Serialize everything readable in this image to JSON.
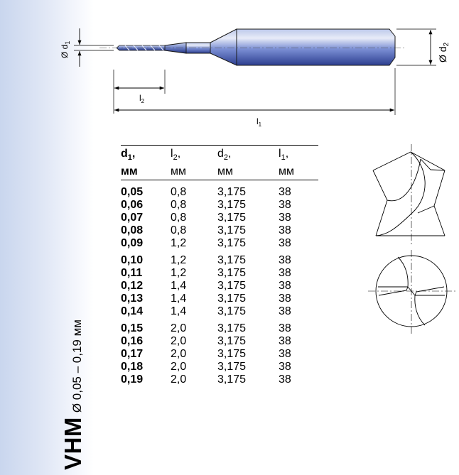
{
  "side_title": {
    "main": "VHM",
    "range": "Ø 0,05 – 0,19 мм"
  },
  "drawing_labels": {
    "d1": "Ø d",
    "d1_sub": "1",
    "d2": "Ø d",
    "d2_sub": "2",
    "l2": "l",
    "l2_sub": "2",
    "l1": "l",
    "l1_sub": "1"
  },
  "table": {
    "headers": [
      {
        "name": "d",
        "sub": "1",
        "suffix": ",",
        "unit": "мм"
      },
      {
        "name": "l",
        "sub": "2",
        "suffix": ",",
        "unit": "мм"
      },
      {
        "name": "d",
        "sub": "2",
        "suffix": ",",
        "unit": "мм"
      },
      {
        "name": "l",
        "sub": "1",
        "suffix": ",",
        "unit": "мм"
      }
    ],
    "rows": [
      [
        "0,05",
        "0,8",
        "3,175",
        "38"
      ],
      [
        "0,06",
        "0,8",
        "3,175",
        "38"
      ],
      [
        "0,07",
        "0,8",
        "3,175",
        "38"
      ],
      [
        "0,08",
        "0,8",
        "3,175",
        "38"
      ],
      [
        "0,09",
        "1,2",
        "3,175",
        "38"
      ],
      [
        "0,10",
        "1,2",
        "3,175",
        "38"
      ],
      [
        "0,11",
        "1,2",
        "3,175",
        "38"
      ],
      [
        "0,12",
        "1,4",
        "3,175",
        "38"
      ],
      [
        "0,13",
        "1,4",
        "3,175",
        "38"
      ],
      [
        "0,14",
        "1,4",
        "3,175",
        "38"
      ],
      [
        "0,15",
        "2,0",
        "3,175",
        "38"
      ],
      [
        "0,16",
        "2,0",
        "3,175",
        "38"
      ],
      [
        "0,17",
        "2,0",
        "3,175",
        "38"
      ],
      [
        "0,18",
        "2,0",
        "3,175",
        "38"
      ],
      [
        "0,19",
        "2,0",
        "3,175",
        "38"
      ]
    ]
  }
}
